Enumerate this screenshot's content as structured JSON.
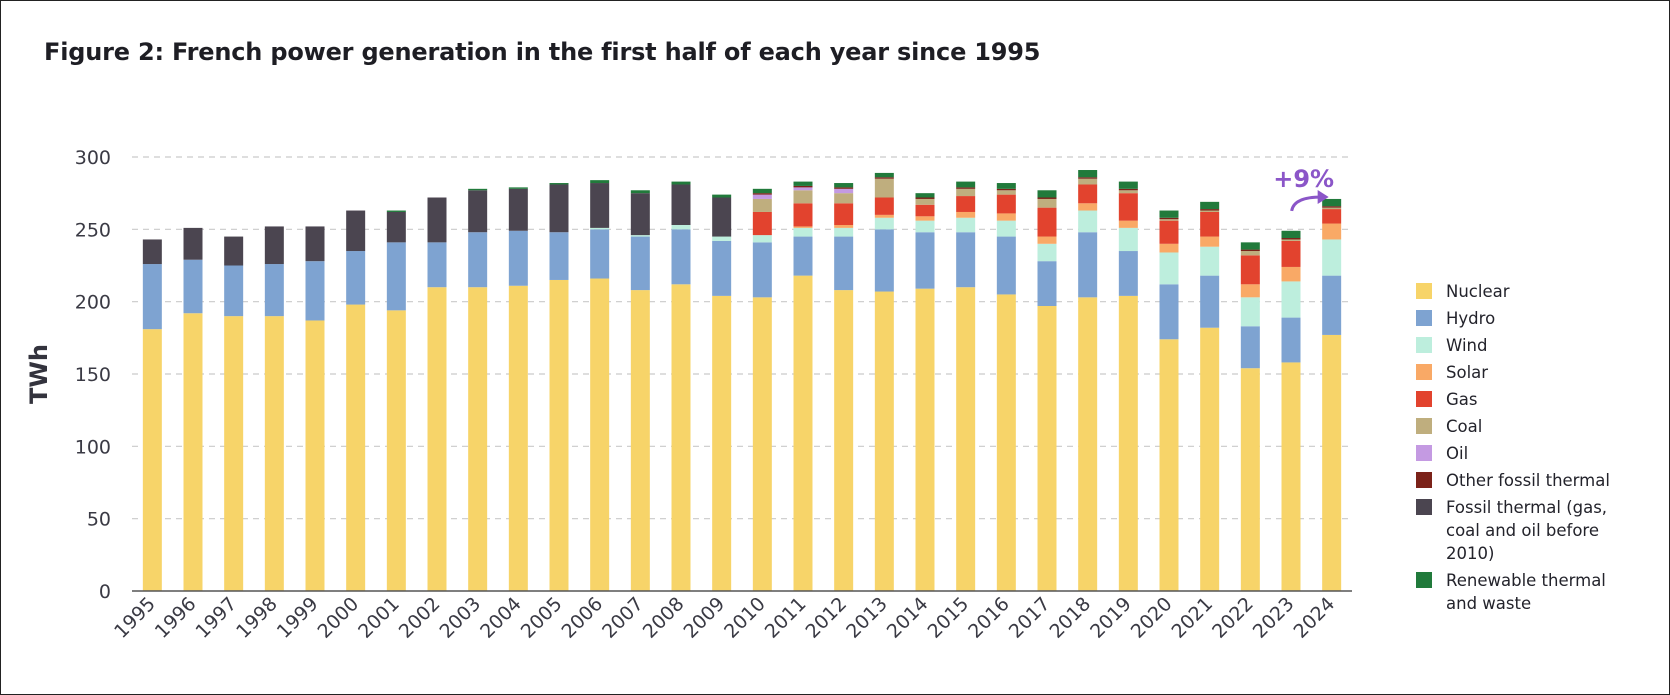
{
  "title": "Figure 2: French power generation in the first half of each year since 1995",
  "annotation": "+9%",
  "legend": [
    {
      "key": "nuclear",
      "label": "Nuclear",
      "color": "#f7d469"
    },
    {
      "key": "hydro",
      "label": "Hydro",
      "color": "#7ea3d1"
    },
    {
      "key": "wind",
      "label": "Wind",
      "color": "#bdeedd"
    },
    {
      "key": "solar",
      "label": "Solar",
      "color": "#f9a966"
    },
    {
      "key": "gas",
      "label": "Gas",
      "color": "#e2432e"
    },
    {
      "key": "coal",
      "label": "Coal",
      "color": "#bfae7e"
    },
    {
      "key": "oil",
      "label": "Oil",
      "color": "#c49ae2"
    },
    {
      "key": "other_fossil",
      "label": "Other fossil thermal",
      "color": "#7b2219"
    },
    {
      "key": "fossil_thermal",
      "label": "Fossil thermal (gas, coal and oil before 2010)",
      "color": "#4b4550"
    },
    {
      "key": "renewable_thermal",
      "label": "Renewable thermal and waste",
      "color": "#217a3b"
    }
  ],
  "chart_data": {
    "type": "bar",
    "stacked": true,
    "title": "Figure 2: French power generation in the first half of each year since 1995",
    "ylabel": "TWh",
    "xlabel": "",
    "ylim": [
      0,
      300
    ],
    "yticks": [
      0,
      50,
      100,
      150,
      200,
      250,
      300
    ],
    "grid": true,
    "legend_position": "right",
    "categories": [
      "1995",
      "1996",
      "1997",
      "1998",
      "1999",
      "2000",
      "2001",
      "2002",
      "2003",
      "2004",
      "2005",
      "2006",
      "2007",
      "2008",
      "2009",
      "2010",
      "2011",
      "2012",
      "2013",
      "2014",
      "2015",
      "2016",
      "2017",
      "2018",
      "2019",
      "2020",
      "2021",
      "2022",
      "2023",
      "2024"
    ],
    "series": [
      {
        "name": "Nuclear",
        "color": "#f7d469",
        "values": [
          181,
          192,
          190,
          190,
          187,
          198,
          194,
          210,
          210,
          211,
          215,
          216,
          208,
          212,
          204,
          203,
          218,
          208,
          207,
          209,
          210,
          205,
          197,
          203,
          204,
          174,
          182,
          154,
          158,
          177
        ]
      },
      {
        "name": "Hydro",
        "color": "#7ea3d1",
        "values": [
          45,
          37,
          35,
          36,
          41,
          37,
          47,
          31,
          38,
          38,
          33,
          34,
          37,
          38,
          38,
          38,
          27,
          37,
          43,
          39,
          38,
          40,
          31,
          45,
          31,
          38,
          36,
          29,
          31,
          41
        ]
      },
      {
        "name": "Wind",
        "color": "#bdeedd",
        "values": [
          0,
          0,
          0,
          0,
          0,
          0,
          0,
          0,
          0,
          0,
          0,
          1,
          1,
          3,
          3,
          5,
          6,
          6,
          8,
          8,
          10,
          11,
          12,
          15,
          16,
          22,
          20,
          20,
          25,
          25
        ]
      },
      {
        "name": "Solar",
        "color": "#f9a966",
        "values": [
          0,
          0,
          0,
          0,
          0,
          0,
          0,
          0,
          0,
          0,
          0,
          0,
          0,
          0,
          0,
          0,
          1,
          2,
          2,
          3,
          4,
          5,
          5,
          5,
          5,
          6,
          7,
          9,
          10,
          11
        ]
      },
      {
        "name": "Gas",
        "color": "#e2432e",
        "values": [
          0,
          0,
          0,
          0,
          0,
          0,
          0,
          0,
          0,
          0,
          0,
          0,
          0,
          0,
          0,
          16,
          16,
          15,
          12,
          8,
          11,
          13,
          20,
          13,
          19,
          16,
          17,
          20,
          18,
          10
        ]
      },
      {
        "name": "Coal",
        "color": "#bfae7e",
        "values": [
          0,
          0,
          0,
          0,
          0,
          0,
          0,
          0,
          0,
          0,
          0,
          0,
          0,
          0,
          0,
          9,
          9,
          7,
          13,
          4,
          5,
          3,
          6,
          4,
          2,
          1,
          1,
          3,
          1,
          1
        ]
      },
      {
        "name": "Oil",
        "color": "#c49ae2",
        "values": [
          0,
          0,
          0,
          0,
          0,
          0,
          0,
          0,
          0,
          0,
          0,
          0,
          0,
          0,
          0,
          3,
          2,
          3,
          0,
          0,
          0,
          0,
          0,
          0,
          0,
          0,
          0,
          0,
          0,
          0
        ]
      },
      {
        "name": "Other fossil thermal",
        "color": "#7b2219",
        "values": [
          0,
          0,
          0,
          0,
          0,
          0,
          0,
          0,
          0,
          0,
          0,
          0,
          0,
          0,
          0,
          1,
          1,
          1,
          1,
          1,
          1,
          1,
          1,
          1,
          1,
          1,
          1,
          1,
          1,
          1
        ]
      },
      {
        "name": "Fossil thermal (gas, coal and oil before 2010)",
        "color": "#4b4550",
        "values": [
          17,
          22,
          20,
          26,
          24,
          28,
          21,
          31,
          29,
          29,
          33,
          31,
          29,
          28,
          27,
          0,
          0,
          0,
          0,
          0,
          0,
          0,
          0,
          0,
          0,
          0,
          0,
          0,
          0,
          0
        ]
      },
      {
        "name": "Renewable thermal and waste",
        "color": "#217a3b",
        "values": [
          0,
          0,
          0,
          0,
          0,
          0,
          1,
          0,
          1,
          1,
          1,
          2,
          2,
          2,
          2,
          3,
          3,
          3,
          3,
          3,
          4,
          4,
          5,
          5,
          5,
          5,
          5,
          5,
          5,
          5
        ]
      }
    ]
  }
}
